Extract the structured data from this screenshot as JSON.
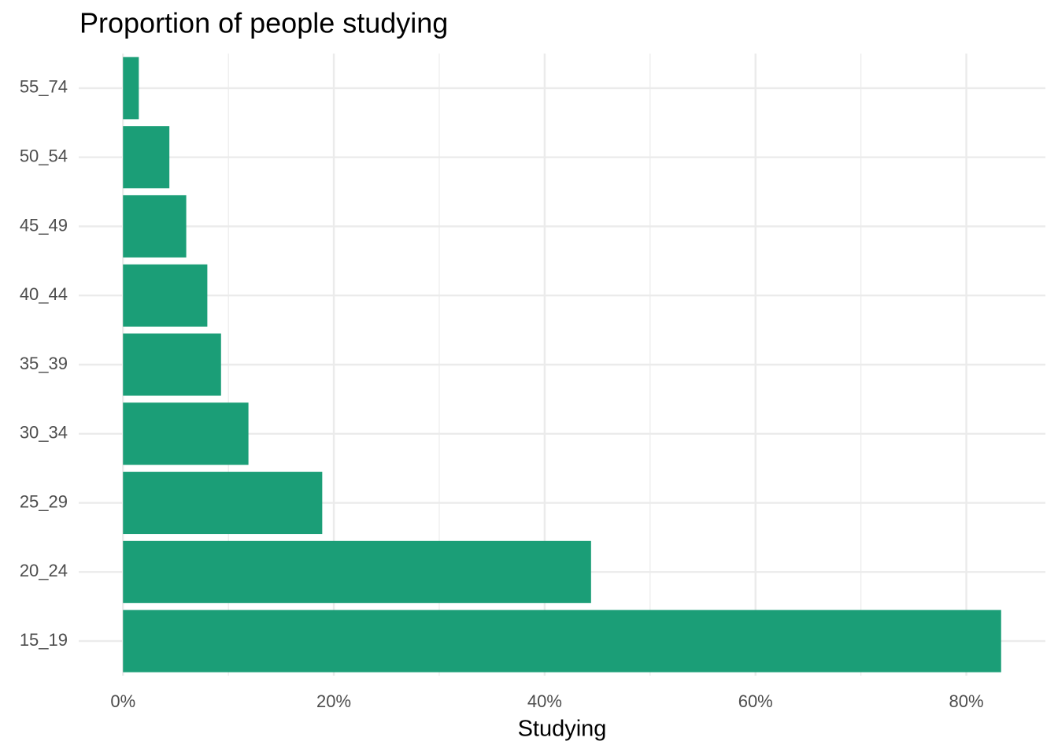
{
  "chart_data": {
    "type": "barh",
    "title": "Proportion of people studying",
    "x_label": "Studying",
    "categories": [
      "15_19",
      "20_24",
      "25_29",
      "30_34",
      "35_39",
      "40_44",
      "45_49",
      "50_54",
      "55_74"
    ],
    "values": [
      83.3,
      44.4,
      18.9,
      11.9,
      9.3,
      8.0,
      6.0,
      4.4,
      1.5
    ],
    "color": "#1b9e77",
    "xlim": [
      -4.2,
      87.5
    ],
    "xticks": [
      {
        "value": 0,
        "label": "0%"
      },
      {
        "value": 20,
        "label": "20%"
      },
      {
        "value": 40,
        "label": "40%"
      },
      {
        "value": 60,
        "label": "60%"
      },
      {
        "value": 80,
        "label": "80%"
      }
    ],
    "minor_xticks": [
      10,
      30,
      50,
      70
    ],
    "grid": true
  }
}
